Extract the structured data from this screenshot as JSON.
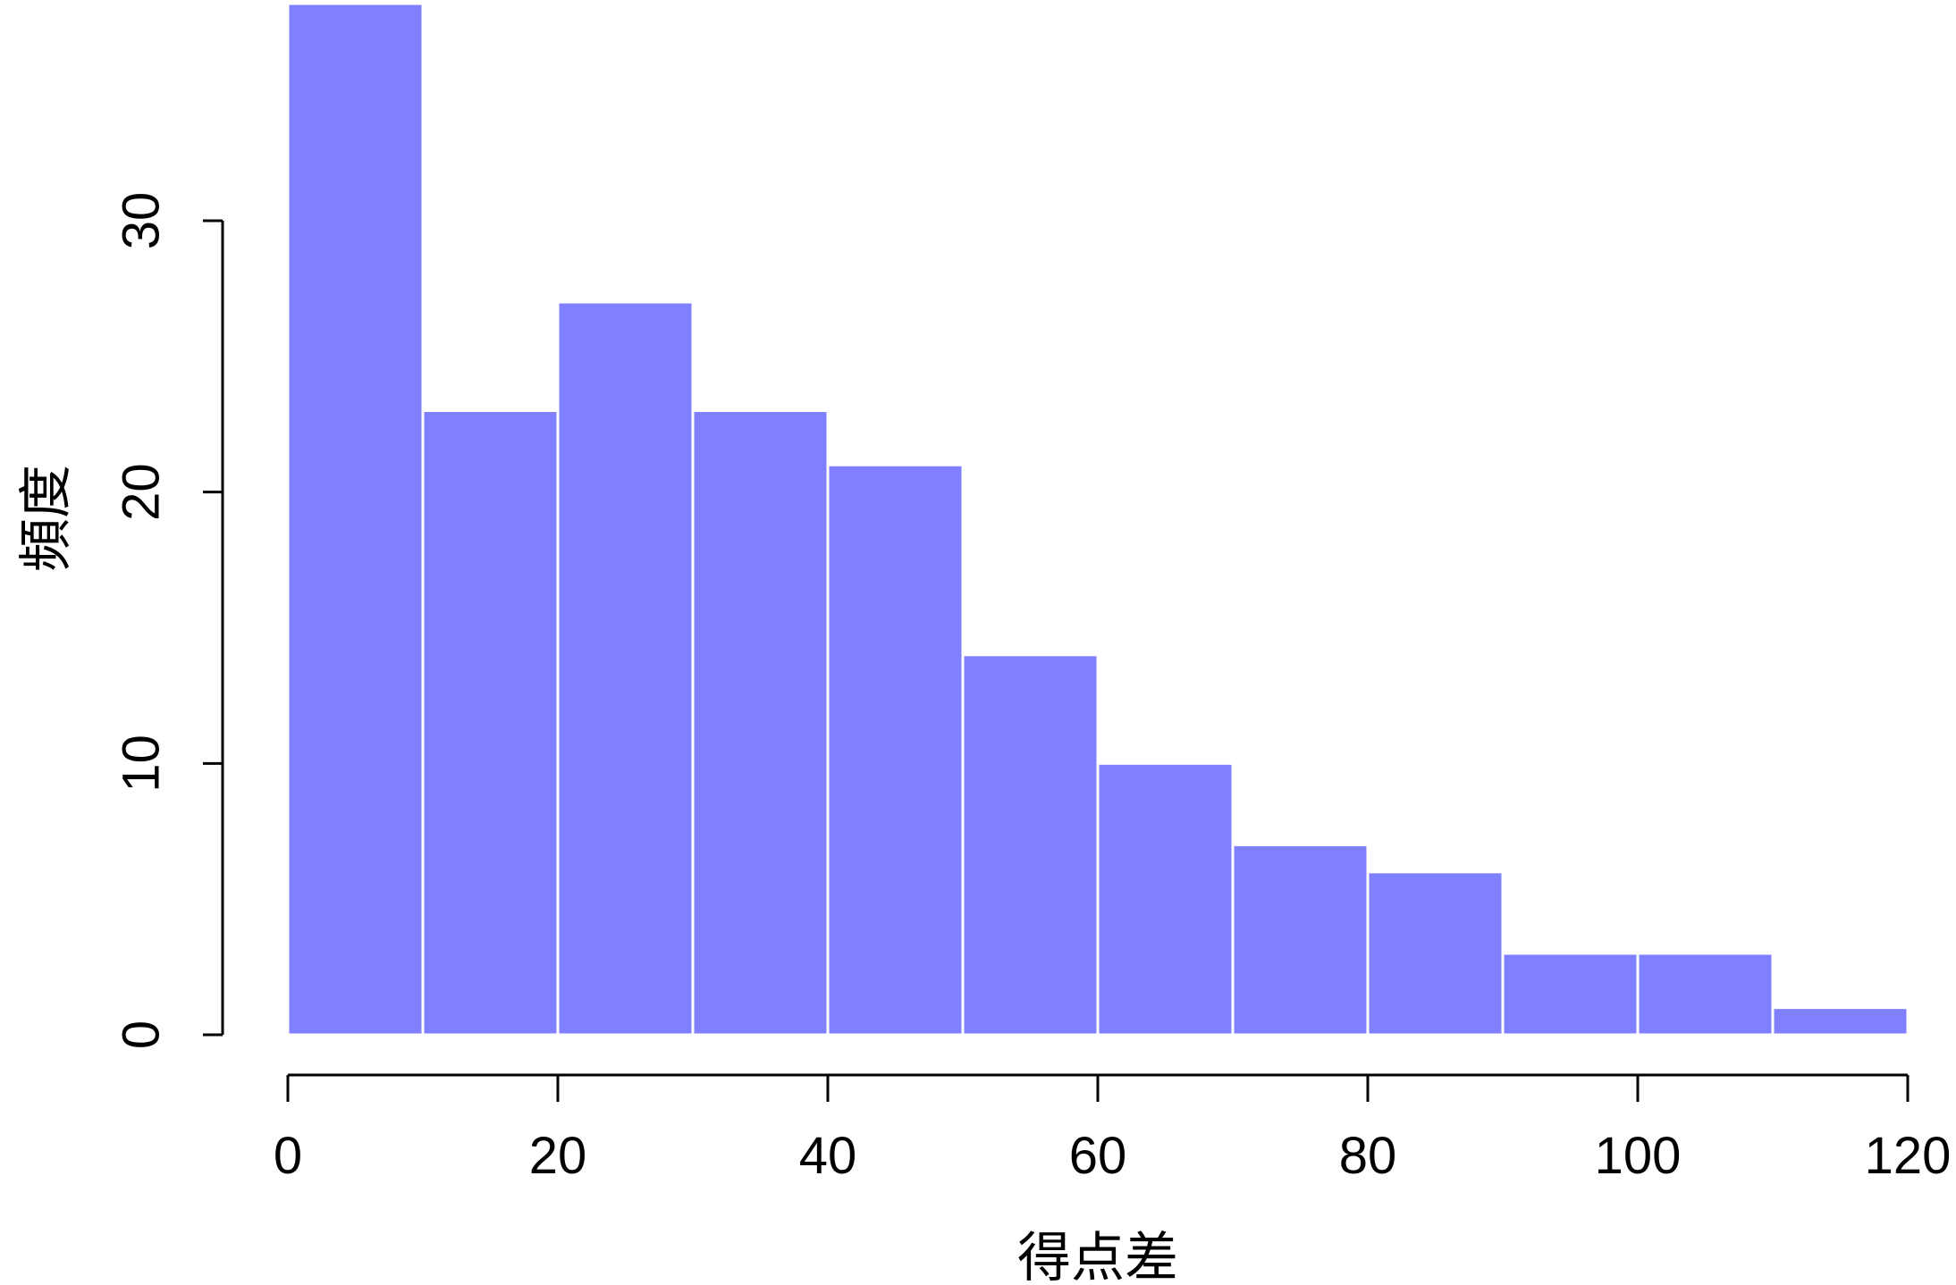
{
  "chart_data": {
    "type": "bar",
    "subtype": "histogram",
    "title": "",
    "xlabel": "得点差",
    "ylabel": "頻度",
    "bins": [
      {
        "start": 0,
        "end": 10,
        "count": 38
      },
      {
        "start": 10,
        "end": 20,
        "count": 23
      },
      {
        "start": 20,
        "end": 30,
        "count": 27
      },
      {
        "start": 30,
        "end": 40,
        "count": 23
      },
      {
        "start": 40,
        "end": 50,
        "count": 21
      },
      {
        "start": 50,
        "end": 60,
        "count": 14
      },
      {
        "start": 60,
        "end": 70,
        "count": 10
      },
      {
        "start": 70,
        "end": 80,
        "count": 7
      },
      {
        "start": 80,
        "end": 90,
        "count": 6
      },
      {
        "start": 90,
        "end": 100,
        "count": 3
      },
      {
        "start": 100,
        "end": 110,
        "count": 3
      },
      {
        "start": 110,
        "end": 120,
        "count": 1
      }
    ],
    "xlim": [
      0,
      120
    ],
    "ylim": [
      0,
      38
    ],
    "xticks": [
      0,
      20,
      40,
      60,
      80,
      100,
      120
    ],
    "yticks": [
      0,
      10,
      20,
      30
    ],
    "grid": false,
    "legend": "none",
    "bar_color": "#8080ff",
    "bar_edge_color": "#ffffff"
  }
}
